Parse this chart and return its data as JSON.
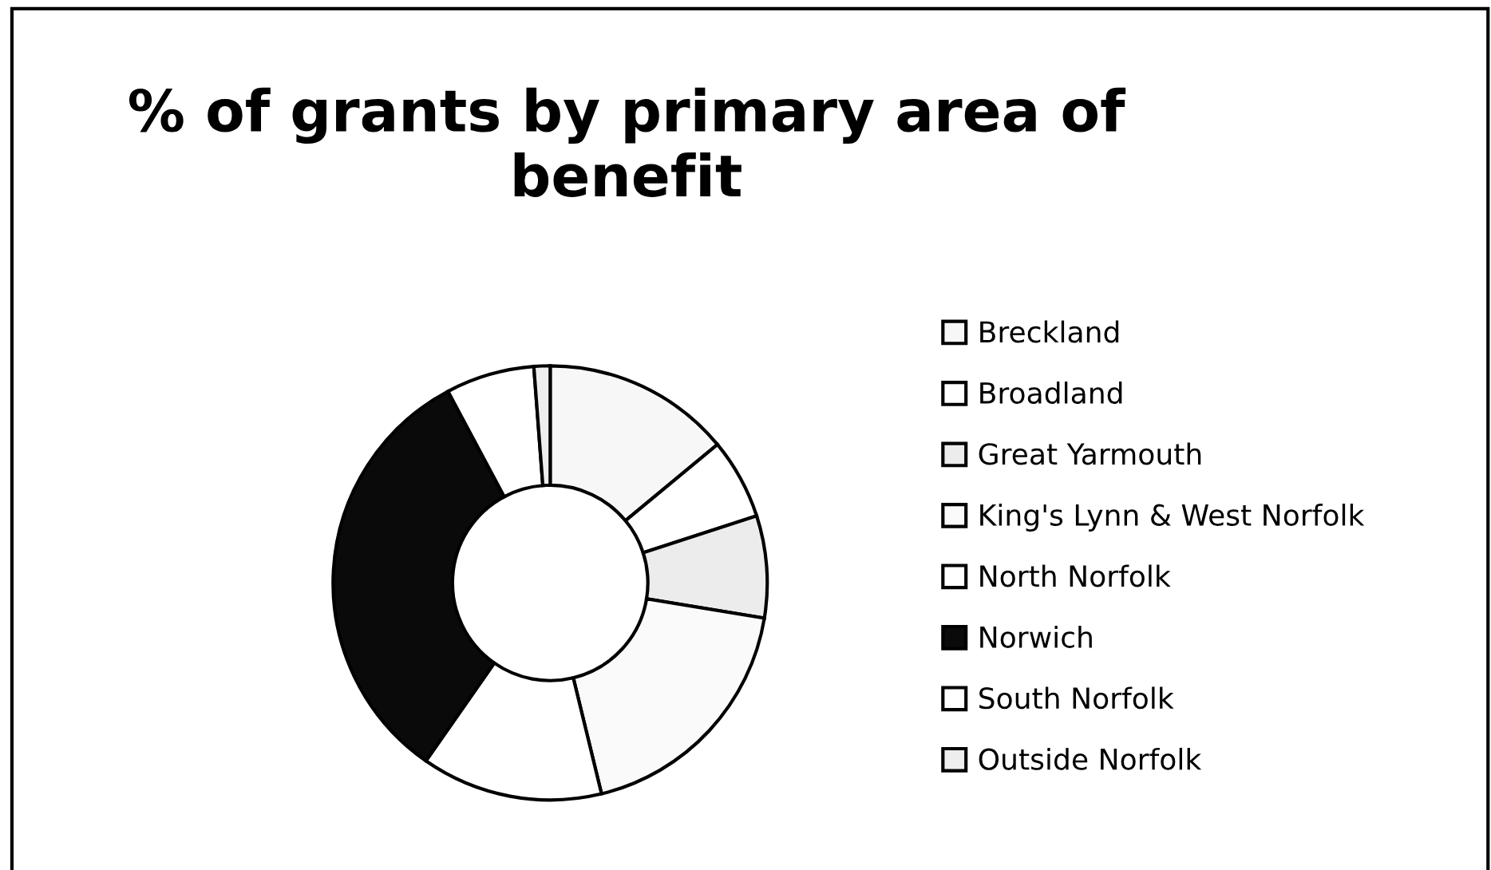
{
  "chart_data": {
    "type": "donut",
    "title": "% of grants by primary area of benefit",
    "categories": [
      "Breckland",
      "Broadland",
      "Great Yarmouth",
      "King's Lynn & West Norfolk",
      "North Norfolk",
      "Norwich",
      "South Norfolk",
      "Outside Norfolk"
    ],
    "values": [
      14,
      6,
      7.6,
      18.6,
      13.5,
      32.5,
      6.6,
      1.2
    ],
    "colors": [
      "#f7f7f7",
      "#ffffff",
      "#ececec",
      "#fafafa",
      "#ffffff",
      "#0a0a0a",
      "#ffffff",
      "#eeeeee"
    ],
    "legend": "right"
  }
}
